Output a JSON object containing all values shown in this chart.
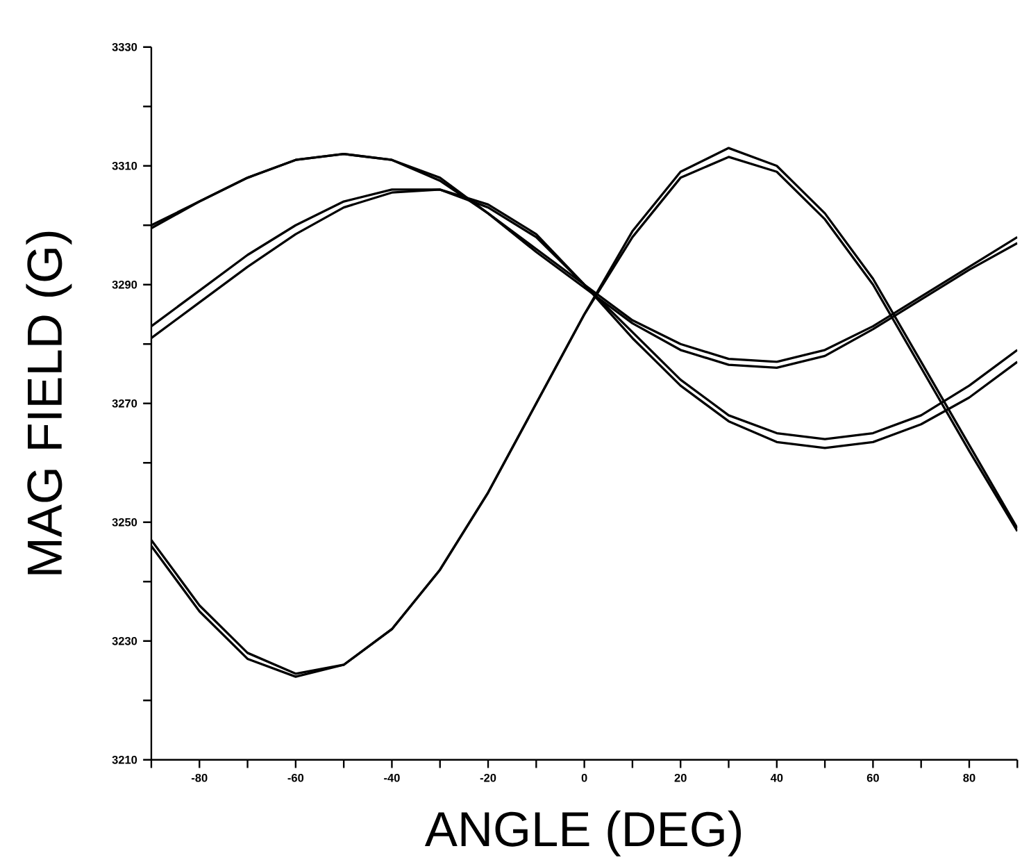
{
  "chart_data": {
    "type": "line",
    "xlabel": "ANGLE (DEG)",
    "ylabel": "MAG FIELD (G)",
    "x": [
      -90,
      -80,
      -70,
      -60,
      -50,
      -40,
      -30,
      -20,
      -10,
      0,
      10,
      20,
      30,
      40,
      50,
      60,
      70,
      80,
      90
    ],
    "series": [
      {
        "color": "#000000",
        "values": [
          3247,
          3236,
          3228,
          3224.5,
          3226,
          3232,
          3242,
          3255,
          3270,
          3285,
          3299,
          3309,
          3313,
          3310,
          3302,
          3291,
          3277,
          3263,
          3249
        ]
      },
      {
        "color": "#000000",
        "values": [
          3246,
          3235,
          3227,
          3224,
          3226,
          3232,
          3242,
          3255,
          3270,
          3285,
          3298,
          3308,
          3311.5,
          3309,
          3301,
          3290,
          3276,
          3262,
          3248.5
        ]
      },
      {
        "color": "#000000",
        "values": [
          3300,
          3304,
          3308,
          3311,
          3312,
          3311,
          3308,
          3302,
          3296,
          3290,
          3284,
          3280,
          3277.5,
          3277,
          3279,
          3283,
          3288,
          3293,
          3298
        ]
      },
      {
        "color": "#000000",
        "values": [
          3299.5,
          3304,
          3308,
          3311,
          3312,
          3311,
          3307.5,
          3302,
          3295.5,
          3289.5,
          3283.5,
          3279,
          3276.5,
          3276,
          3278,
          3282.5,
          3287.5,
          3292.5,
          3297
        ]
      },
      {
        "color": "#000000",
        "values": [
          3283,
          3289,
          3295,
          3300,
          3304,
          3306,
          3306,
          3303,
          3298,
          3290,
          3282,
          3274,
          3268,
          3265,
          3264,
          3265,
          3268,
          3273,
          3279
        ]
      },
      {
        "color": "#000000",
        "values": [
          3281,
          3287,
          3293,
          3298.5,
          3303,
          3305.5,
          3306,
          3303.5,
          3298.5,
          3290,
          3281,
          3273,
          3267,
          3263.5,
          3262.5,
          3263.5,
          3266.5,
          3271,
          3277
        ]
      }
    ],
    "xlim": [
      -90,
      90
    ],
    "xticks": [
      {
        "value": -90,
        "label": null
      },
      -80,
      {
        "value": -70,
        "label": null
      },
      -60,
      {
        "value": -50,
        "label": null
      },
      -40,
      {
        "value": -30,
        "label": null
      },
      -20,
      {
        "value": -10,
        "label": null
      },
      0,
      {
        "value": 10,
        "label": null
      },
      20,
      {
        "value": 30,
        "label": null
      },
      40,
      {
        "value": 50,
        "label": null
      },
      60,
      {
        "value": 70,
        "label": null
      },
      80,
      {
        "value": 90,
        "label": null
      }
    ],
    "ylim": [
      3210,
      3330
    ],
    "yticks": [
      3210,
      {
        "value": 3220,
        "label": null
      },
      3230,
      {
        "value": 3240,
        "label": null
      },
      3250,
      {
        "value": 3260,
        "label": null
      },
      3270,
      {
        "value": 3280,
        "label": null
      },
      3290,
      {
        "value": 3300,
        "label": null
      },
      3310,
      {
        "value": 3320,
        "label": null
      },
      3330
    ],
    "grid": false,
    "marker": "none",
    "line_style": "solid"
  }
}
